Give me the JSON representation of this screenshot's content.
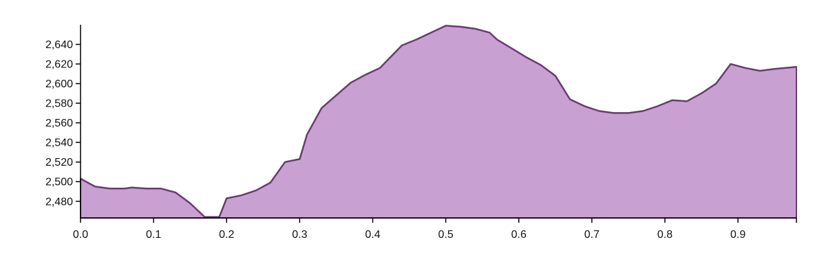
{
  "chart_data": {
    "type": "area",
    "title": "",
    "xlabel": "",
    "ylabel": "",
    "xlim": [
      0.0,
      0.98
    ],
    "ylim": [
      2463,
      2660
    ],
    "x_ticks": [
      {
        "value": 0.0,
        "label": "0.0"
      },
      {
        "value": 0.1,
        "label": "0.1"
      },
      {
        "value": 0.2,
        "label": "0.2"
      },
      {
        "value": 0.3,
        "label": "0.3"
      },
      {
        "value": 0.4,
        "label": "0.4"
      },
      {
        "value": 0.5,
        "label": "0.5"
      },
      {
        "value": 0.6,
        "label": "0.6"
      },
      {
        "value": 0.7,
        "label": "0.7"
      },
      {
        "value": 0.8,
        "label": "0.8"
      },
      {
        "value": 0.9,
        "label": "0.9"
      }
    ],
    "y_ticks": [
      {
        "value": 2480,
        "label": "2,480"
      },
      {
        "value": 2500,
        "label": "2,500"
      },
      {
        "value": 2520,
        "label": "2,520"
      },
      {
        "value": 2540,
        "label": "2,540"
      },
      {
        "value": 2560,
        "label": "2,560"
      },
      {
        "value": 2580,
        "label": "2,580"
      },
      {
        "value": 2600,
        "label": "2,600"
      },
      {
        "value": 2620,
        "label": "2,620"
      },
      {
        "value": 2640,
        "label": "2,640"
      }
    ],
    "series": [
      {
        "fill_color": "#c9a0d2",
        "line_color": "#6b3a72",
        "x": [
          0.0,
          0.02,
          0.04,
          0.06,
          0.07,
          0.09,
          0.11,
          0.13,
          0.15,
          0.17,
          0.19,
          0.2,
          0.22,
          0.24,
          0.26,
          0.28,
          0.3,
          0.31,
          0.33,
          0.35,
          0.37,
          0.39,
          0.41,
          0.44,
          0.46,
          0.48,
          0.5,
          0.52,
          0.54,
          0.56,
          0.57,
          0.59,
          0.61,
          0.63,
          0.65,
          0.67,
          0.69,
          0.71,
          0.73,
          0.75,
          0.77,
          0.79,
          0.8,
          0.81,
          0.83,
          0.85,
          0.87,
          0.89,
          0.91,
          0.93,
          0.95,
          0.98
        ],
        "y": [
          2503,
          2495,
          2493,
          2493,
          2494,
          2493,
          2493,
          2489,
          2478,
          2464,
          2464,
          2483,
          2486,
          2491,
          2499,
          2520,
          2523,
          2548,
          2575,
          2588,
          2601,
          2609,
          2616,
          2639,
          2645,
          2652,
          2659,
          2658,
          2656,
          2652,
          2645,
          2636,
          2627,
          2619,
          2608,
          2584,
          2577,
          2572,
          2570,
          2570,
          2572,
          2577,
          2580,
          2583,
          2582,
          2590,
          2600,
          2620,
          2616,
          2613,
          2615,
          2617
        ]
      }
    ]
  }
}
